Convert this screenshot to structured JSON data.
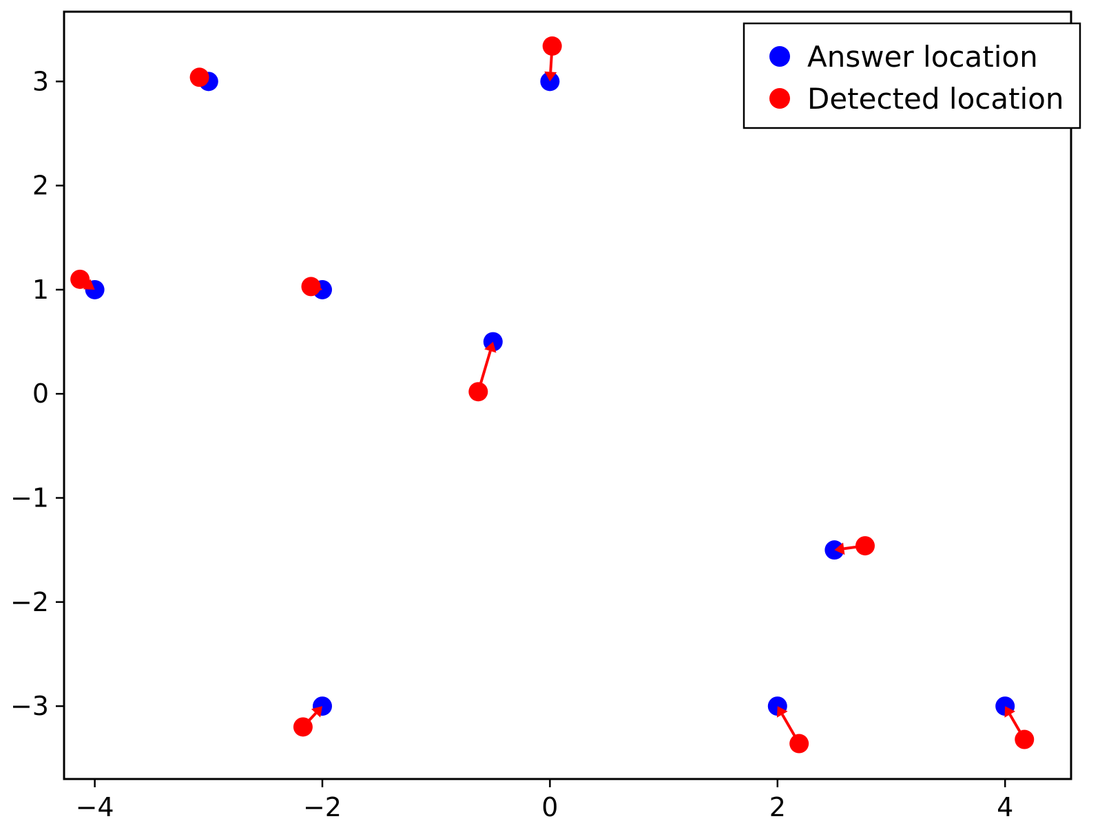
{
  "chart_data": {
    "type": "scatter",
    "title": "",
    "xlabel": "",
    "ylabel": "",
    "xlim": [
      -4.27,
      4.58
    ],
    "ylim": [
      -3.7,
      3.67
    ],
    "xticks": [
      -4,
      -2,
      0,
      2,
      4
    ],
    "yticks": [
      -3,
      -2,
      -1,
      0,
      1,
      2,
      3
    ],
    "xtick_labels": [
      "−4",
      "−2",
      "0",
      "2",
      "4"
    ],
    "ytick_labels": [
      "−3",
      "−2",
      "−1",
      "0",
      "1",
      "2",
      "3"
    ],
    "grid": false,
    "legend_position": "top-right",
    "series": [
      {
        "name": "Answer location",
        "color": "#0000ff",
        "points": [
          {
            "x": -3,
            "y": 3
          },
          {
            "x": 0,
            "y": 3
          },
          {
            "x": -4,
            "y": 1
          },
          {
            "x": -2,
            "y": 1
          },
          {
            "x": -0.5,
            "y": 0.5
          },
          {
            "x": 2.5,
            "y": -1.5
          },
          {
            "x": -2,
            "y": -3
          },
          {
            "x": 2,
            "y": -3
          },
          {
            "x": 4,
            "y": -3
          }
        ]
      },
      {
        "name": "Detected location",
        "color": "#ff0000",
        "points": [
          {
            "x": -3.08,
            "y": 3.04
          },
          {
            "x": 0.02,
            "y": 3.34
          },
          {
            "x": -4.13,
            "y": 1.1
          },
          {
            "x": -2.1,
            "y": 1.03
          },
          {
            "x": -0.63,
            "y": 0.02
          },
          {
            "x": 2.77,
            "y": -1.46
          },
          {
            "x": -2.17,
            "y": -3.2
          },
          {
            "x": 2.19,
            "y": -3.36
          },
          {
            "x": 4.17,
            "y": -3.32
          }
        ]
      }
    ],
    "arrows": {
      "color": "#ff0000",
      "description_from": "Detected location",
      "description_to": "Answer location"
    }
  }
}
